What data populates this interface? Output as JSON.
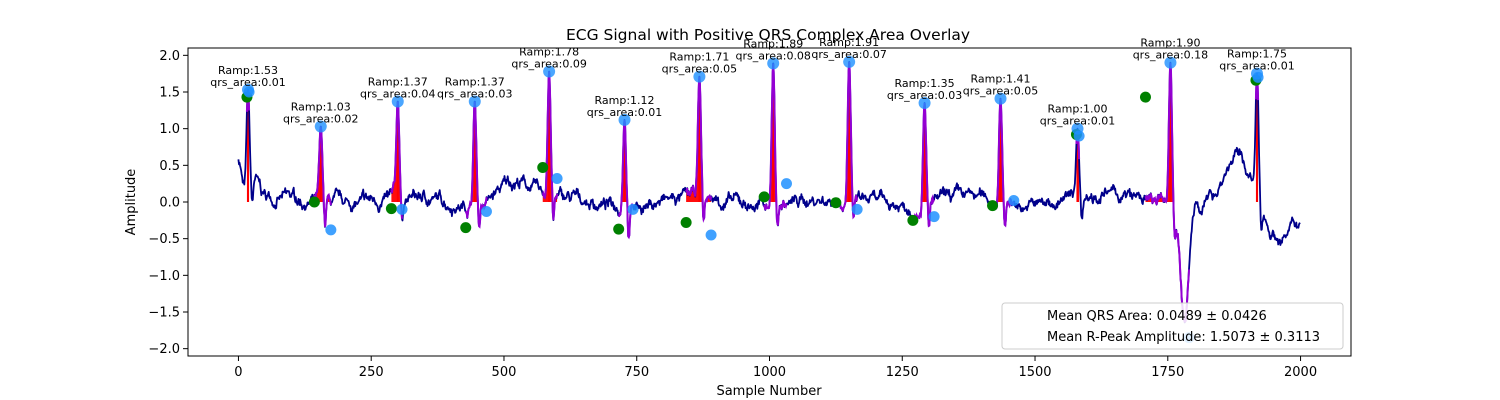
{
  "chart_data": {
    "type": "line",
    "title": "ECG Signal with Positive QRS Complex Area Overlay",
    "xlabel": "Sample Number",
    "ylabel": "Amplitude",
    "xlim": [
      -95,
      2095
    ],
    "ylim": [
      -2.1,
      2.1
    ],
    "xticks": [
      0,
      250,
      500,
      750,
      1000,
      1250,
      1500,
      1750,
      2000
    ],
    "yticks": [
      -2.0,
      -1.5,
      -1.0,
      -0.5,
      0.0,
      0.5,
      1.0,
      1.5,
      2.0
    ],
    "grid": false,
    "colors": {
      "signal": "#00008b",
      "qrs_segment": "#9400d3",
      "qrs_area": "#ff0000",
      "r_peak": "#1e90ff",
      "q_point": "#008000",
      "s_point": "#1e90ff"
    },
    "beats": [
      {
        "r": 18,
        "amp": 1.53,
        "area": 0.01,
        "amp_label": "Ramp:1.53",
        "area_label": "qrs_area:0.01",
        "q_x": 16,
        "q_y": 1.43,
        "s_x": 20,
        "s_y": 1.5
      },
      {
        "r": 155,
        "amp": 1.03,
        "area": 0.02,
        "amp_label": "Ramp:1.03",
        "area_label": "qrs_area:0.02",
        "q_x": 143,
        "q_y": 0.0,
        "s_x": 174,
        "s_y": -0.38
      },
      {
        "r": 300,
        "amp": 1.37,
        "area": 0.04,
        "amp_label": "Ramp:1.37",
        "area_label": "qrs_area:0.04",
        "q_x": 288,
        "q_y": -0.09,
        "s_x": 308,
        "s_y": -0.1
      },
      {
        "r": 445,
        "amp": 1.37,
        "area": 0.03,
        "amp_label": "Ramp:1.37",
        "area_label": "qrs_area:0.03",
        "q_x": 428,
        "q_y": -0.35,
        "s_x": 467,
        "s_y": -0.13
      },
      {
        "r": 585,
        "amp": 1.78,
        "area": 0.09,
        "amp_label": "Ramp:1.78",
        "area_label": "qrs_area:0.09",
        "q_x": 573,
        "q_y": 0.47,
        "s_x": 600,
        "s_y": 0.32
      },
      {
        "r": 727,
        "amp": 1.12,
        "area": 0.01,
        "amp_label": "Ramp:1.12",
        "area_label": "qrs_area:0.01",
        "q_x": 716,
        "q_y": -0.37,
        "s_x": 743,
        "s_y": -0.1
      },
      {
        "r": 868,
        "amp": 1.71,
        "area": 0.05,
        "amp_label": "Ramp:1.71",
        "area_label": "qrs_area:0.05",
        "q_x": 843,
        "q_y": -0.28,
        "s_x": 890,
        "s_y": -0.45
      },
      {
        "r": 1007,
        "amp": 1.89,
        "area": 0.08,
        "amp_label": "Ramp:1.89",
        "area_label": "qrs_area:0.08",
        "q_x": 990,
        "q_y": 0.07,
        "s_x": 1032,
        "s_y": 0.25
      },
      {
        "r": 1150,
        "amp": 1.91,
        "area": 0.07,
        "amp_label": "Ramp:1.91",
        "area_label": "qrs_area:0.07",
        "q_x": 1125,
        "q_y": -0.01,
        "s_x": 1165,
        "s_y": -0.1
      },
      {
        "r": 1292,
        "amp": 1.35,
        "area": 0.03,
        "amp_label": "Ramp:1.35",
        "area_label": "qrs_area:0.03",
        "q_x": 1270,
        "q_y": -0.25,
        "s_x": 1310,
        "s_y": -0.2
      },
      {
        "r": 1435,
        "amp": 1.41,
        "area": 0.05,
        "amp_label": "Ramp:1.41",
        "area_label": "qrs_area:0.05",
        "q_x": 1420,
        "q_y": -0.05,
        "s_x": 1460,
        "s_y": 0.02
      },
      {
        "r": 1580,
        "amp": 1.0,
        "area": 0.01,
        "amp_label": "Ramp:1.00",
        "area_label": "qrs_area:0.01",
        "q_x": 1578,
        "q_y": 0.92,
        "s_x": 1583,
        "s_y": 0.9
      },
      {
        "r": 1755,
        "amp": 1.9,
        "area": 0.18,
        "amp_label": "Ramp:1.90",
        "area_label": "qrs_area:0.18",
        "q_x": 1708,
        "q_y": 1.43,
        "s_x": 1790,
        "s_y": -1.85
      },
      {
        "r": 1918,
        "amp": 1.75,
        "area": 0.01,
        "amp_label": "Ramp:1.75",
        "area_label": "qrs_area:0.01",
        "q_x": 1916,
        "q_y": 1.66,
        "s_x": 1920,
        "s_y": 1.7
      }
    ],
    "legend": {
      "position": "lower right",
      "entries": [
        "Mean QRS Area: 0.0489 ± 0.0426",
        "Mean R-Peak Amplitude: 1.5073 ± 0.3113"
      ]
    }
  }
}
